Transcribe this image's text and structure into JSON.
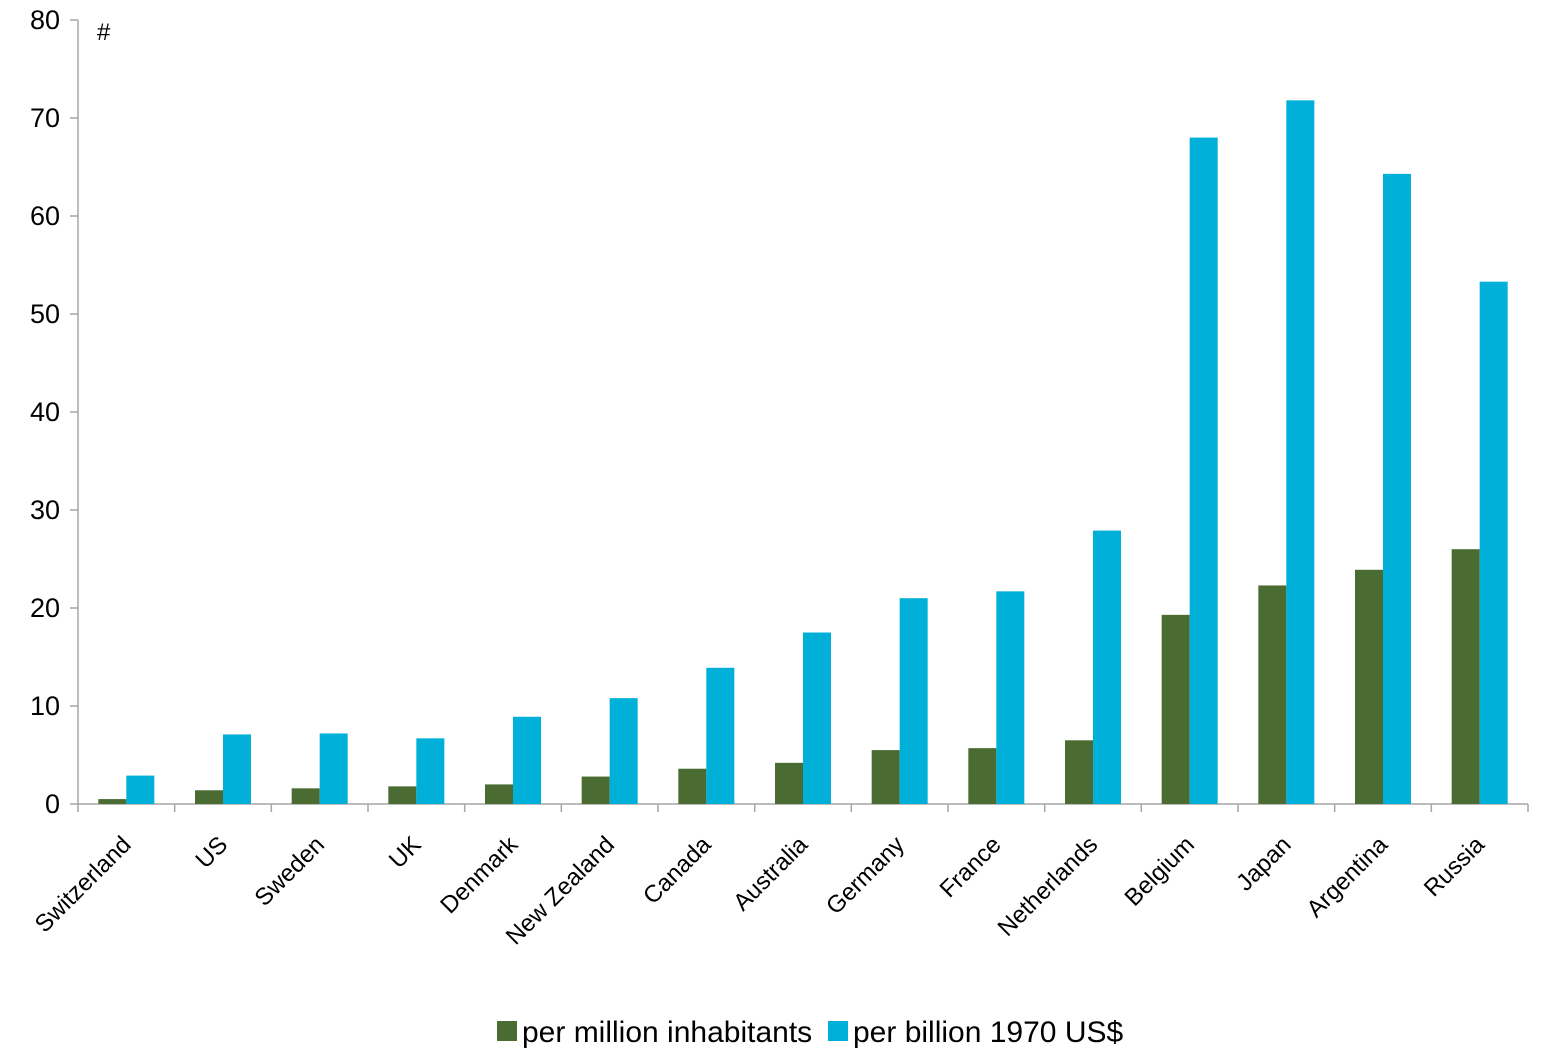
{
  "chart_data": {
    "type": "bar",
    "unit_label": "#",
    "categories": [
      "Switzerland",
      "US",
      "Sweden",
      "UK",
      "Denmark",
      "New Zealand",
      "Canada",
      "Australia",
      "Germany",
      "France",
      "Netherlands",
      "Belgium",
      "Japan",
      "Argentina",
      "Russia"
    ],
    "series": [
      {
        "name": "per million inhabitants",
        "color": "#4a6b32",
        "values": [
          0.5,
          1.4,
          1.6,
          1.8,
          2.0,
          2.8,
          3.6,
          4.2,
          5.5,
          5.7,
          6.5,
          19.3,
          22.3,
          23.9,
          26.0
        ]
      },
      {
        "name": "per billion 1970 US$",
        "color": "#00b0d8",
        "values": [
          2.9,
          7.1,
          7.2,
          6.7,
          8.9,
          10.8,
          13.9,
          17.5,
          21.0,
          21.7,
          27.9,
          68.0,
          71.8,
          64.3,
          53.3
        ]
      }
    ],
    "ylim": [
      0,
      80
    ],
    "yticks": [
      0,
      10,
      20,
      30,
      40,
      50,
      60,
      70,
      80
    ],
    "grid": false,
    "legend_position": "bottom"
  }
}
